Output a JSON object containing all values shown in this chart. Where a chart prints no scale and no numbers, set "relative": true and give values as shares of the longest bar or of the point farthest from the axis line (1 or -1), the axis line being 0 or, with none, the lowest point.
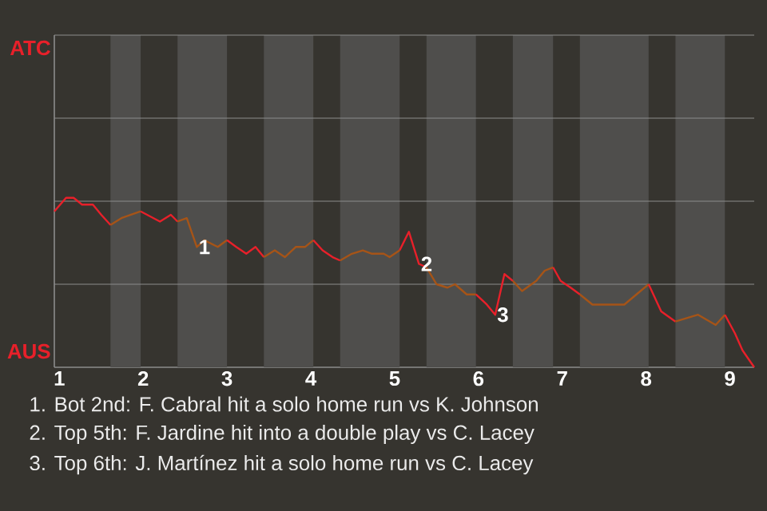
{
  "chart_data": {
    "type": "line",
    "relative": true,
    "xlim": [
      0.94,
      9.29
    ],
    "xticks": [
      1,
      2,
      3,
      4,
      5,
      6,
      7,
      8,
      9
    ],
    "legend": false,
    "marker": "none",
    "line_style": "solid",
    "series": [
      {
        "color": "#e8202a",
        "x": [
          0.94,
          1.08,
          1.17,
          1.27,
          1.4,
          1.5,
          1.61
        ],
        "values": [
          0.92,
          1,
          1,
          0.96,
          0.96,
          0.9,
          0.84
        ]
      },
      {
        "color": "#a65417",
        "x": [
          1.61,
          1.74,
          1.97
        ],
        "values": [
          0.84,
          0.88,
          0.92
        ]
      },
      {
        "color": "#e8202a",
        "x": [
          1.97,
          2.2,
          2.33,
          2.41
        ],
        "values": [
          0.92,
          0.86,
          0.9,
          0.86
        ]
      },
      {
        "color": "#a65417",
        "x": [
          2.41,
          2.52,
          2.64,
          2.73,
          2.89,
          3
        ],
        "values": [
          0.86,
          0.88,
          0.71,
          0.75,
          0.71,
          0.75
        ]
      },
      {
        "color": "#e8202a",
        "x": [
          3,
          3.11,
          3.23,
          3.34,
          3.44
        ],
        "values": [
          0.75,
          0.71,
          0.67,
          0.71,
          0.65
        ]
      },
      {
        "color": "#a65417",
        "x": [
          3.44,
          3.57,
          3.69,
          3.82,
          3.93,
          4.03
        ],
        "values": [
          0.65,
          0.69,
          0.65,
          0.71,
          0.71,
          0.75
        ]
      },
      {
        "color": "#e8202a",
        "x": [
          4.03,
          4.14,
          4.26,
          4.35
        ],
        "values": [
          0.75,
          0.69,
          0.65,
          0.63
        ]
      },
      {
        "color": "#a65417",
        "x": [
          4.35,
          4.49,
          4.62,
          4.73,
          4.87,
          4.94,
          5.06
        ],
        "values": [
          0.63,
          0.67,
          0.69,
          0.67,
          0.67,
          0.65,
          0.69
        ]
      },
      {
        "color": "#e8202a",
        "x": [
          5.06,
          5.17,
          5.29,
          5.38
        ],
        "values": [
          0.69,
          0.8,
          0.61,
          0.59
        ]
      },
      {
        "color": "#a65417",
        "x": [
          5.38,
          5.5,
          5.63,
          5.72,
          5.86,
          5.97
        ],
        "values": [
          0.59,
          0.49,
          0.47,
          0.49,
          0.43,
          0.43
        ]
      },
      {
        "color": "#e8202a",
        "x": [
          5.97,
          6.1,
          6.2,
          6.31,
          6.41
        ],
        "values": [
          0.43,
          0.37,
          0.31,
          0.55,
          0.51
        ]
      },
      {
        "color": "#a65417",
        "x": [
          6.41,
          6.52,
          6.69,
          6.79,
          6.89
        ],
        "values": [
          0.51,
          0.45,
          0.51,
          0.57,
          0.59
        ]
      },
      {
        "color": "#e8202a",
        "x": [
          6.89,
          6.98,
          7.1,
          7.21
        ],
        "values": [
          0.59,
          0.51,
          0.47,
          0.43
        ]
      },
      {
        "color": "#a65417",
        "x": [
          7.21,
          7.36,
          7.74,
          8.03
        ],
        "values": [
          0.43,
          0.37,
          0.37,
          0.49
        ]
      },
      {
        "color": "#e8202a",
        "x": [
          8.03,
          8.18,
          8.35
        ],
        "values": [
          0.49,
          0.33,
          0.27
        ]
      },
      {
        "color": "#a65417",
        "x": [
          8.35,
          8.62,
          8.83,
          8.94
        ],
        "values": [
          0.27,
          0.31,
          0.25,
          0.31
        ]
      },
      {
        "color": "#e8202a",
        "x": [
          8.94,
          9.06,
          9.15,
          9.29
        ],
        "values": [
          0.31,
          0.2,
          0.1,
          0
        ]
      }
    ],
    "ref_lines": [
      {
        "axis": "y",
        "value": 0.49,
        "color": "#8c8c8c"
      },
      {
        "axis": "y",
        "value": 0.98,
        "color": "#8c8c8c"
      },
      {
        "axis": "y",
        "value": 1.47,
        "color": "#8c8c8c"
      },
      {
        "axis": "y",
        "value": 1.96,
        "label": "ATC",
        "color": "#8c8c8c"
      }
    ],
    "bands": [
      {
        "axis": "x",
        "from": 1.61,
        "to": 1.97,
        "color": "#4f4e4c"
      },
      {
        "axis": "x",
        "from": 2.41,
        "to": 3,
        "color": "#4f4e4c"
      },
      {
        "axis": "x",
        "from": 3.44,
        "to": 4.03,
        "color": "#4f4e4c"
      },
      {
        "axis": "x",
        "from": 4.35,
        "to": 5.06,
        "color": "#4f4e4c"
      },
      {
        "axis": "x",
        "from": 5.38,
        "to": 5.97,
        "color": "#4f4e4c"
      },
      {
        "axis": "x",
        "from": 6.41,
        "to": 6.89,
        "color": "#4f4e4c"
      },
      {
        "axis": "x",
        "from": 7.21,
        "to": 8.03,
        "color": "#4f4e4c"
      },
      {
        "axis": "x",
        "from": 8.35,
        "to": 8.94,
        "color": "#4f4e4c"
      }
    ],
    "annotations": [
      "AUS",
      {
        "text": "1",
        "x": 2.64,
        "y": 0.71
      },
      {
        "text": "2",
        "x": 5.29,
        "y": 0.61
      },
      {
        "text": "3",
        "x": 6.2,
        "y": 0.31
      },
      "1. Bot 2nd: F. Cabral hit a solo home run vs K. Johnson",
      "2. Top 5th: F. Jardine hit into a double play vs C. Lacey",
      "3. Top 6th: J. Martínez hit a solo home run vs C. Lacey"
    ]
  }
}
